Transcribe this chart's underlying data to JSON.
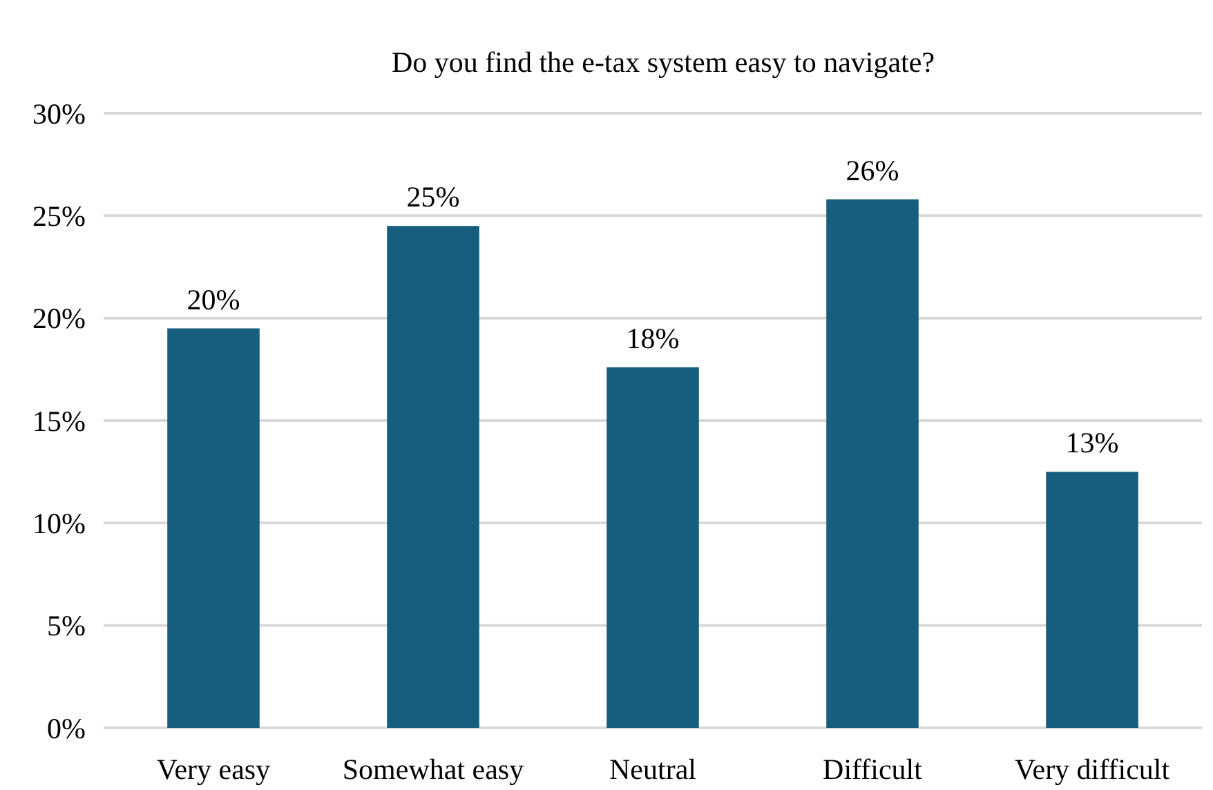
{
  "chart_data": {
    "type": "bar",
    "title": "Do you find the e-tax system easy to navigate?",
    "categories": [
      "Very easy",
      "Somewhat easy",
      "Neutral",
      "Difficult",
      "Very difficult"
    ],
    "values": [
      19.5,
      24.5,
      17.6,
      25.8,
      12.5
    ],
    "value_labels": [
      "20%",
      "25%",
      "18%",
      "26%",
      "13%"
    ],
    "color": "#175e7e",
    "ylim": [
      0,
      30
    ],
    "yticks": [
      {
        "value": 0,
        "label": "0%"
      },
      {
        "value": 5,
        "label": "5%"
      },
      {
        "value": 10,
        "label": "10%"
      },
      {
        "value": 15,
        "label": "15%"
      },
      {
        "value": 20,
        "label": "20%"
      },
      {
        "value": 25,
        "label": "25%"
      },
      {
        "value": 30,
        "label": "30%"
      }
    ],
    "grid": "y"
  }
}
